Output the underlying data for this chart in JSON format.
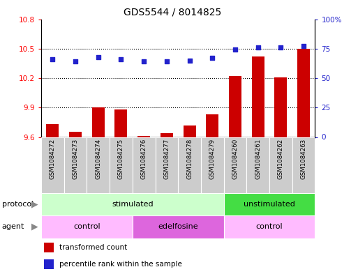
{
  "title": "GDS5544 / 8014825",
  "samples": [
    "GSM1084272",
    "GSM1084273",
    "GSM1084274",
    "GSM1084275",
    "GSM1084276",
    "GSM1084277",
    "GSM1084278",
    "GSM1084279",
    "GSM1084260",
    "GSM1084261",
    "GSM1084262",
    "GSM1084263"
  ],
  "transformed_count": [
    9.73,
    9.65,
    9.9,
    9.88,
    9.61,
    9.64,
    9.72,
    9.83,
    10.22,
    10.42,
    10.21,
    10.5
  ],
  "percentile_rank": [
    66,
    64,
    68,
    66,
    64,
    64,
    65,
    67,
    74,
    76,
    76,
    77
  ],
  "ylim_left": [
    9.6,
    10.8
  ],
  "yticks_left": [
    9.6,
    9.9,
    10.2,
    10.5,
    10.8
  ],
  "ylim_right": [
    0,
    100
  ],
  "yticks_right": [
    0,
    25,
    50,
    75,
    100
  ],
  "yticklabels_right": [
    "0",
    "25",
    "50",
    "75",
    "100%"
  ],
  "bar_color": "#cc0000",
  "dot_color": "#2222cc",
  "bar_bottom": 9.6,
  "protocol_groups": [
    {
      "label": "stimulated",
      "start": 0,
      "end": 8,
      "color": "#ccffcc"
    },
    {
      "label": "unstimulated",
      "start": 8,
      "end": 12,
      "color": "#44dd44"
    }
  ],
  "agent_groups": [
    {
      "label": "control",
      "start": 0,
      "end": 4,
      "color": "#ffbbff"
    },
    {
      "label": "edelfosine",
      "start": 4,
      "end": 8,
      "color": "#dd66dd"
    },
    {
      "label": "control",
      "start": 8,
      "end": 12,
      "color": "#ffbbff"
    }
  ],
  "protocol_label": "protocol",
  "agent_label": "agent",
  "legend_items": [
    {
      "label": "transformed count",
      "color": "#cc0000"
    },
    {
      "label": "percentile rank within the sample",
      "color": "#2222cc"
    }
  ],
  "xticklabel_bg": "#cccccc",
  "fig_bg": "#ffffff",
  "plot_bg": "#ffffff"
}
